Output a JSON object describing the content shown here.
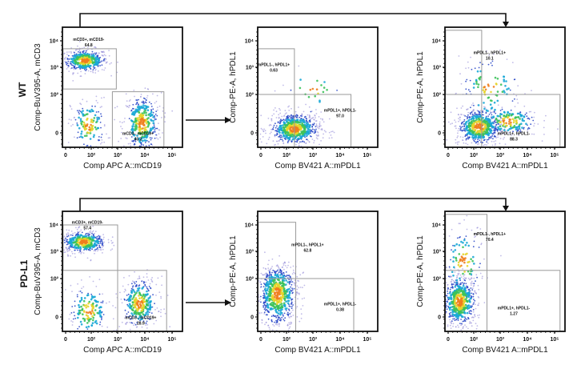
{
  "rows": [
    {
      "label": "WT"
    },
    {
      "label": "PD-L1"
    }
  ],
  "chart_data": [
    {
      "type": "scatter",
      "row": 0,
      "col": 0,
      "xlabel": "Comp APC A::mCD19",
      "ylabel": "Comp-BuV395-A, mCD3",
      "xticks": [
        "0",
        "10²",
        "10³",
        "10⁴",
        "10⁵"
      ],
      "yticks": [
        "0",
        "10²",
        "10³",
        "10⁴"
      ],
      "gates": [
        {
          "name": "mCD3+, mCD19-",
          "value": "64.8",
          "x": [
            -0.1,
            1.95
          ],
          "y": [
            1.2,
            2.7
          ],
          "label_at": [
            0.9,
            3.0
          ]
        },
        {
          "name": "mCD3-, mCD19+",
          "value": "40.2",
          "x": [
            1.8,
            3.7
          ],
          "y": [
            -0.4,
            1.1
          ],
          "label_at": [
            2.75,
            -0.05
          ]
        }
      ],
      "populations": [
        {
          "center": [
            0.75,
            2.25
          ],
          "spread": [
            0.45,
            0.22
          ],
          "n": 420
        },
        {
          "center": [
            2.9,
            0.25
          ],
          "spread": [
            0.35,
            0.4
          ],
          "n": 380
        },
        {
          "center": [
            0.9,
            0.2
          ],
          "spread": [
            0.35,
            0.35
          ],
          "n": 150
        }
      ]
    },
    {
      "type": "scatter",
      "row": 0,
      "col": 1,
      "xlabel": "Comp BV421 A::mPDL1",
      "ylabel": "Comp-PE-A, hPDL1",
      "xticks": [
        "0",
        "10²",
        "10³",
        "10⁴",
        "10⁵"
      ],
      "yticks": [
        "0",
        "10²",
        "10³",
        "10⁴"
      ],
      "gates": [
        {
          "name": "mPDL1-, hPDL1+",
          "value": "0.63",
          "x": [
            -0.1,
            1.3
          ],
          "y": [
            1.0,
            2.7
          ],
          "label_at": [
            0.5,
            2.05
          ]
        },
        {
          "name": "mPDL1+, hPDL1-",
          "value": "97.0",
          "x": [
            1.3,
            3.4
          ],
          "y": [
            -0.6,
            1.0
          ],
          "label_at": [
            3.0,
            0.55
          ]
        }
      ],
      "populations": [
        {
          "center": [
            1.3,
            0.1
          ],
          "spread": [
            0.5,
            0.22
          ],
          "n": 650
        },
        {
          "center": [
            2.0,
            1.2
          ],
          "spread": [
            0.6,
            0.4
          ],
          "n": 25
        }
      ]
    },
    {
      "type": "scatter",
      "row": 0,
      "col": 2,
      "xlabel": "Comp BV421 A::mPDL1",
      "ylabel": "Comp-PE-A, hPDL1",
      "xticks": [
        "0",
        "10²",
        "10³",
        "10⁴",
        "10⁵"
      ],
      "yticks": [
        "0",
        "10²",
        "10³",
        "10⁴"
      ],
      "gates": [
        {
          "name": "mPDL1-, hPDL1+",
          "value": "10.1",
          "x": [
            -0.1,
            1.3
          ],
          "y": [
            1.0,
            3.4
          ],
          "label_at": [
            1.6,
            2.5
          ]
        },
        {
          "name": "mPDL1+, hPDL1-",
          "value": "88.3",
          "x": [
            1.3,
            4.2
          ],
          "y": [
            -0.6,
            1.0
          ],
          "label_at": [
            2.5,
            -0.05
          ]
        }
      ],
      "populations": [
        {
          "center": [
            1.2,
            0.15
          ],
          "spread": [
            0.45,
            0.25
          ],
          "n": 550
        },
        {
          "center": [
            2.3,
            0.3
          ],
          "spread": [
            0.55,
            0.2
          ],
          "n": 180
        },
        {
          "center": [
            1.6,
            1.3
          ],
          "spread": [
            0.6,
            0.6
          ],
          "n": 120
        }
      ]
    },
    {
      "type": "scatter",
      "row": 1,
      "col": 0,
      "xlabel": "Comp APC A::mCD19",
      "ylabel": "Comp-BuV395-A, mCD3",
      "xticks": [
        "0",
        "10²",
        "10³",
        "10⁴",
        "10⁵"
      ],
      "yticks": [
        "0",
        "10²",
        "10³",
        "10⁴"
      ],
      "gates": [
        {
          "name": "mCD3+, mCD19-",
          "value": "57.4",
          "x": [
            -0.1,
            2.0
          ],
          "y": [
            1.3,
            3.0
          ],
          "label_at": [
            0.85,
            3.05
          ]
        },
        {
          "name": "mCD3-, mCD19+",
          "value": "28.9",
          "x": [
            2.0,
            3.8
          ],
          "y": [
            -0.5,
            1.3
          ],
          "label_at": [
            2.85,
            -0.05
          ]
        }
      ],
      "populations": [
        {
          "center": [
            0.7,
            2.35
          ],
          "spread": [
            0.45,
            0.22
          ],
          "n": 420
        },
        {
          "center": [
            2.8,
            0.35
          ],
          "spread": [
            0.35,
            0.35
          ],
          "n": 330
        },
        {
          "center": [
            0.9,
            0.15
          ],
          "spread": [
            0.4,
            0.35
          ],
          "n": 170
        }
      ]
    },
    {
      "type": "scatter",
      "row": 1,
      "col": 1,
      "xlabel": "Comp BV421 A::mPDL1",
      "ylabel": "Comp-PE-A, hPDL1",
      "xticks": [
        "0",
        "10²",
        "10³",
        "10⁴",
        "10⁵"
      ],
      "yticks": [
        "0",
        "10²",
        "10³",
        "10⁴"
      ],
      "gates": [
        {
          "name": "mPDL1-, hPDL1+",
          "value": "62.8",
          "x": [
            -0.1,
            1.35
          ],
          "y": [
            1.0,
            3.1
          ],
          "label_at": [
            1.8,
            2.2
          ]
        },
        {
          "name": "mPDL1+, hPDL1-",
          "value": "0.38",
          "x": [
            1.35,
            3.5
          ],
          "y": [
            -0.6,
            1.0
          ],
          "label_at": [
            3.0,
            0.3
          ]
        }
      ],
      "populations": [
        {
          "center": [
            0.65,
            0.6
          ],
          "spread": [
            0.4,
            0.45
          ],
          "n": 700
        }
      ]
    },
    {
      "type": "scatter",
      "row": 1,
      "col": 2,
      "xlabel": "Comp BV421 A::mPDL1",
      "ylabel": "Comp-PE-A, hPDL1",
      "xticks": [
        "0",
        "10²",
        "10³",
        "10⁴",
        "10⁵"
      ],
      "yticks": [
        "0",
        "10²",
        "10³",
        "10⁴"
      ],
      "gates": [
        {
          "name": "mPDL1-, hPDL1+",
          "value": "70.4",
          "x": [
            -0.1,
            1.5
          ],
          "y": [
            1.3,
            3.4
          ],
          "label_at": [
            1.6,
            2.6
          ]
        },
        {
          "name": "mPDL1+, hPDL1-",
          "value": "1.27",
          "x": [
            1.5,
            4.2
          ],
          "y": [
            -0.6,
            1.3
          ],
          "label_at": [
            2.5,
            0.2
          ]
        }
      ],
      "populations": [
        {
          "center": [
            0.45,
            0.4
          ],
          "spread": [
            0.35,
            0.35
          ],
          "n": 600
        },
        {
          "center": [
            0.6,
            1.6
          ],
          "spread": [
            0.4,
            0.7
          ],
          "n": 120
        }
      ]
    }
  ],
  "colors": {
    "gate": "#9a9a9a",
    "axis": "#111111",
    "arrow": "#111111"
  }
}
